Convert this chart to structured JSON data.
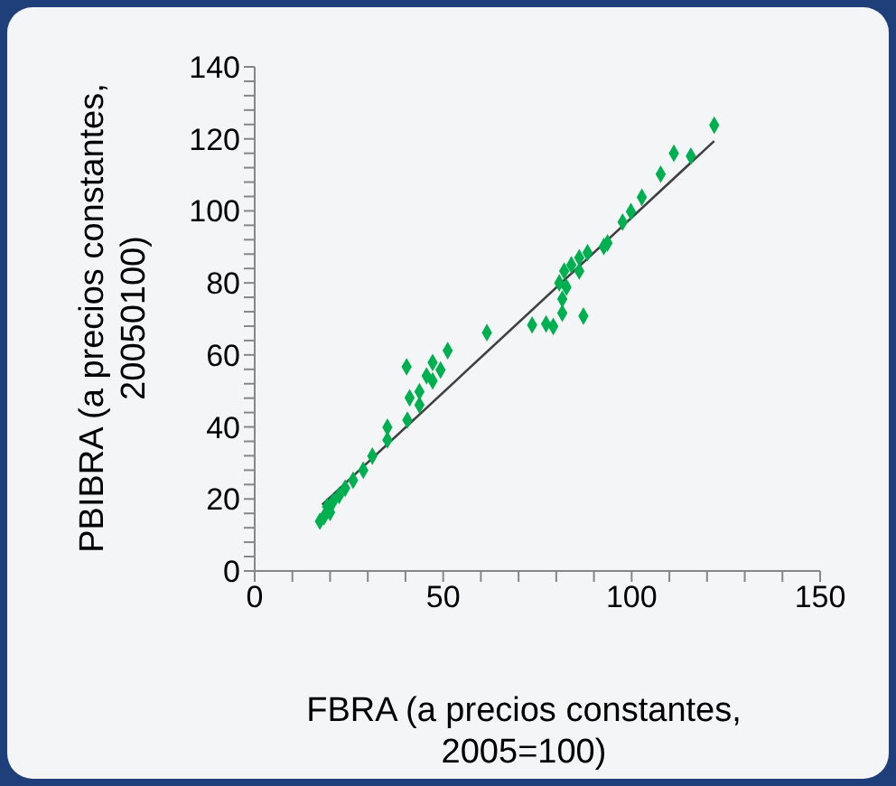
{
  "chart_data": {
    "type": "scatter",
    "xlabel": "FBRA (a precios constantes, 2005=100)",
    "ylabel": "PBIBRA (a precios constantes, 20050100)",
    "series": [
      {
        "color": "#00b050",
        "marker": "diamond",
        "x": [
          121.9,
          111.2,
          115.7,
          107.7,
          102.7,
          99.8,
          97.6,
          93.6,
          92.6,
          88.3,
          86.1,
          86.1,
          84.0,
          82.1,
          80.8,
          82.7,
          81.6,
          81.6,
          87.2,
          79.2,
          77.3,
          73.6,
          61.6,
          51.2,
          40.3,
          47.2,
          49.3,
          45.6,
          47.2,
          43.7,
          41.1,
          43.7,
          40.5,
          35.2,
          35.2,
          31.2,
          28.8,
          26.1,
          24.0,
          22.4,
          20.8,
          19.2,
          20.0,
          18.4,
          17.3
        ],
        "values": [
          123.8,
          116.0,
          115.2,
          110.2,
          103.8,
          99.8,
          96.9,
          91.1,
          90.1,
          88.4,
          87.0,
          83.3,
          85.0,
          83.3,
          80.0,
          78.8,
          75.5,
          71.6,
          70.8,
          67.9,
          68.6,
          68.3,
          66.2,
          61.2,
          56.7,
          57.9,
          55.8,
          54.2,
          52.8,
          49.8,
          48.1,
          46.1,
          41.9,
          39.9,
          36.4,
          31.9,
          28.0,
          25.2,
          23.0,
          21.0,
          19.3,
          17.9,
          16.3,
          15.1,
          13.8
        ]
      },
      {
        "type": "line",
        "color": "#404040",
        "marker": "none",
        "x": [
          17.9,
          121.9
        ],
        "values": [
          18.4,
          119.4
        ]
      }
    ],
    "xlim": [
      0,
      150
    ],
    "xticks": [
      0,
      {
        "value": 10,
        "label": null
      },
      {
        "value": 20,
        "label": null
      },
      {
        "value": 30,
        "label": null
      },
      {
        "value": 40,
        "label": null
      },
      50,
      {
        "value": 60,
        "label": null
      },
      {
        "value": 70,
        "label": null
      },
      {
        "value": 80,
        "label": null
      },
      {
        "value": 90,
        "label": null
      },
      100,
      {
        "value": 110,
        "label": null
      },
      {
        "value": 120,
        "label": null
      },
      {
        "value": 130,
        "label": null
      },
      {
        "value": 140,
        "label": null
      },
      150
    ],
    "ylim": [
      0,
      140
    ],
    "yticks": [
      0,
      {
        "value": 4,
        "label": null
      },
      {
        "value": 8,
        "label": null
      },
      {
        "value": 12,
        "label": null
      },
      {
        "value": 16,
        "label": null
      },
      20,
      {
        "value": 24,
        "label": null
      },
      {
        "value": 28,
        "label": null
      },
      {
        "value": 32,
        "label": null
      },
      {
        "value": 36,
        "label": null
      },
      40,
      {
        "value": 44,
        "label": null
      },
      {
        "value": 48,
        "label": null
      },
      {
        "value": 52,
        "label": null
      },
      {
        "value": 56,
        "label": null
      },
      60,
      {
        "value": 64,
        "label": null
      },
      {
        "value": 68,
        "label": null
      },
      {
        "value": 72,
        "label": null
      },
      {
        "value": 76,
        "label": null
      },
      80,
      {
        "value": 84,
        "label": null
      },
      {
        "value": 88,
        "label": null
      },
      {
        "value": 92,
        "label": null
      },
      {
        "value": 96,
        "label": null
      },
      100,
      {
        "value": 104,
        "label": null
      },
      {
        "value": 108,
        "label": null
      },
      {
        "value": 112,
        "label": null
      },
      {
        "value": 116,
        "label": null
      },
      120,
      {
        "value": 124,
        "label": null
      },
      {
        "value": 128,
        "label": null
      },
      {
        "value": 132,
        "label": null
      },
      {
        "value": 136,
        "label": null
      },
      140
    ],
    "grid": false
  }
}
